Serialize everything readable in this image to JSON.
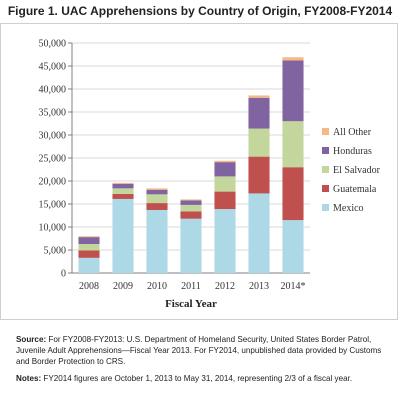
{
  "figure_title": "Figure 1. UAC Apprehensions by Country of Origin, FY2008-FY2014",
  "chart_data": {
    "type": "bar",
    "stacked": true,
    "title": "Figure 1. UAC Apprehensions by Country of Origin, FY2008-FY2014",
    "xlabel": "Fiscal Year",
    "ylabel": "",
    "categories": [
      "2008",
      "2009",
      "2010",
      "2011",
      "2012",
      "2013",
      "2014*"
    ],
    "ylim": [
      0,
      50000
    ],
    "yticks": [
      0,
      5000,
      10000,
      15000,
      20000,
      25000,
      30000,
      35000,
      40000,
      45000,
      50000
    ],
    "ytick_labels": [
      "0",
      "5,000",
      "10,000",
      "15,000",
      "20,000",
      "25,000",
      "30,000",
      "35,000",
      "40,000",
      "45,000",
      "50,000"
    ],
    "grid": true,
    "legend_position": "right",
    "series": [
      {
        "name": "Mexico",
        "color": "#add8e6",
        "values": [
          3300,
          16100,
          13700,
          11800,
          13900,
          17300,
          11500
        ]
      },
      {
        "name": "Guatemala",
        "color": "#c0504d",
        "values": [
          1600,
          1100,
          1500,
          1600,
          3800,
          8000,
          11500
        ]
      },
      {
        "name": "El Salvador",
        "color": "#c3d69b",
        "values": [
          1400,
          1200,
          1900,
          1400,
          3300,
          6100,
          10000
        ]
      },
      {
        "name": "Honduras",
        "color": "#8064a2",
        "values": [
          1500,
          1000,
          1000,
          1000,
          3100,
          6700,
          13200
        ]
      },
      {
        "name": "All Other",
        "color": "#f7b984",
        "values": [
          200,
          200,
          300,
          200,
          300,
          500,
          700
        ]
      }
    ]
  },
  "notes": {
    "source_label": "Source:",
    "source_text": " For FY2008-FY2013: U.S. Department of Homeland Security, United States Border Patrol, Juvenile Adult Apprehensions—Fiscal Year 2013. For FY2014, unpublished data provided by Customs and Border Protection to CRS.",
    "notes_label": "Notes:",
    "notes_text": " FY2014 figures are October 1, 2013 to May 31, 2014, representing 2/3 of a fiscal year."
  }
}
